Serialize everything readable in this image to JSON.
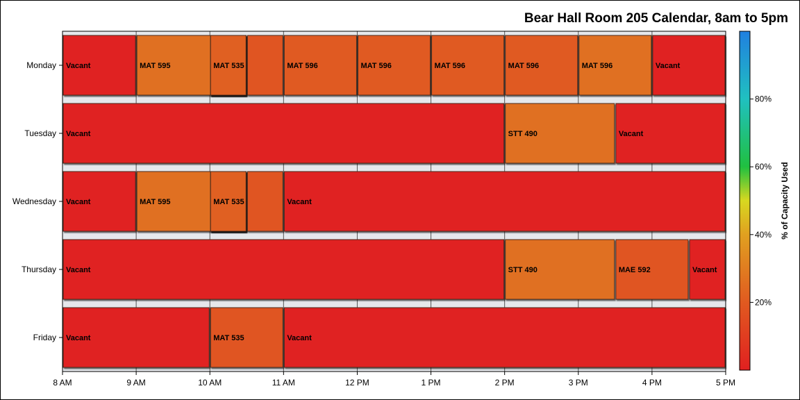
{
  "chart_data": {
    "type": "bar",
    "orientation": "horizontal",
    "title": "Bear Hall Room 205 Calendar, 8am to 5pm",
    "xlabel": "",
    "ylabel": "",
    "x_range_hours": [
      8,
      17
    ],
    "x_ticks": [
      {
        "hour": 8,
        "label": "8 AM"
      },
      {
        "hour": 9,
        "label": "9 AM"
      },
      {
        "hour": 10,
        "label": "10 AM"
      },
      {
        "hour": 11,
        "label": "11 AM"
      },
      {
        "hour": 12,
        "label": "12 PM"
      },
      {
        "hour": 13,
        "label": "1 PM"
      },
      {
        "hour": 14,
        "label": "2 PM"
      },
      {
        "hour": 15,
        "label": "3 PM"
      },
      {
        "hour": 16,
        "label": "4 PM"
      },
      {
        "hour": 17,
        "label": "5 PM"
      }
    ],
    "categories": [
      "Monday",
      "Tuesday",
      "Wednesday",
      "Thursday",
      "Friday"
    ],
    "colorbar": {
      "label": "% of Capacity Used",
      "range": [
        0,
        100
      ],
      "ticks": [
        {
          "value": 20,
          "label": "20%"
        },
        {
          "value": 40,
          "label": "40%"
        },
        {
          "value": 60,
          "label": "60%"
        },
        {
          "value": 80,
          "label": "80%"
        }
      ],
      "stops": [
        {
          "value": 0,
          "color": "#e02020"
        },
        {
          "value": 20,
          "color": "#e05a20"
        },
        {
          "value": 40,
          "color": "#e0a020"
        },
        {
          "value": 50,
          "color": "#d8d820"
        },
        {
          "value": 60,
          "color": "#20c040"
        },
        {
          "value": 80,
          "color": "#20c0c0"
        },
        {
          "value": 100,
          "color": "#2080e0"
        }
      ]
    },
    "blocks": [
      {
        "day": "Monday",
        "start": 8,
        "end": 9,
        "label": "Vacant",
        "capacity": 0
      },
      {
        "day": "Monday",
        "start": 9,
        "end": 10.5,
        "label": "MAT 595",
        "capacity": 26
      },
      {
        "day": "Monday",
        "start": 10,
        "end": 10.5,
        "label": "MAT 595",
        "capacity": 26
      },
      {
        "day": "Monday",
        "start": 10,
        "end": 10.5,
        "label": "MAT 535",
        "capacity": 22
      },
      {
        "day": "Monday",
        "start": 10,
        "end": 10.5,
        "label": "MAT 535",
        "capacity": 22
      },
      {
        "day": "Monday",
        "start": 10.5,
        "end": 11,
        "label": "",
        "capacity": 18
      },
      {
        "day": "Monday",
        "start": 11,
        "end": 12,
        "label": "MAT 596",
        "capacity": 20
      },
      {
        "day": "Monday",
        "start": 12,
        "end": 13,
        "label": "MAT 596",
        "capacity": 20
      },
      {
        "day": "Monday",
        "start": 13,
        "end": 14,
        "label": "MAT 596",
        "capacity": 20
      },
      {
        "day": "Monday",
        "start": 14,
        "end": 15,
        "label": "MAT 596",
        "capacity": 20
      },
      {
        "day": "Monday",
        "start": 15,
        "end": 16,
        "label": "MAT 596",
        "capacity": 26
      },
      {
        "day": "Monday",
        "start": 16,
        "end": 17,
        "label": "Vacant",
        "capacity": 0
      },
      {
        "day": "Tuesday",
        "start": 8,
        "end": 14,
        "label": "Vacant",
        "capacity": 0
      },
      {
        "day": "Tuesday",
        "start": 14,
        "end": 15.5,
        "label": "STT 490",
        "capacity": 26
      },
      {
        "day": "Tuesday",
        "start": 15.5,
        "end": 17,
        "label": "Vacant",
        "capacity": 0
      },
      {
        "day": "Wednesday",
        "start": 8,
        "end": 9,
        "label": "Vacant",
        "capacity": 0
      },
      {
        "day": "Wednesday",
        "start": 9,
        "end": 10.5,
        "label": "MAT 595",
        "capacity": 26
      },
      {
        "day": "Wednesday",
        "start": 10,
        "end": 10.5,
        "label": "MAT 595",
        "capacity": 26
      },
      {
        "day": "Wednesday",
        "start": 10,
        "end": 10.5,
        "label": "MAT 535",
        "capacity": 22
      },
      {
        "day": "Wednesday",
        "start": 10,
        "end": 10.5,
        "label": "MAT 535",
        "capacity": 22
      },
      {
        "day": "Wednesday",
        "start": 10.5,
        "end": 11,
        "label": "",
        "capacity": 18
      },
      {
        "day": "Wednesday",
        "start": 11,
        "end": 17,
        "label": "Vacant",
        "capacity": 0
      },
      {
        "day": "Thursday",
        "start": 8,
        "end": 14,
        "label": "Vacant",
        "capacity": 0
      },
      {
        "day": "Thursday",
        "start": 14,
        "end": 15.5,
        "label": "STT 490",
        "capacity": 26
      },
      {
        "day": "Thursday",
        "start": 15.5,
        "end": 16.5,
        "label": "MAE 592",
        "capacity": 18
      },
      {
        "day": "Thursday",
        "start": 16.5,
        "end": 17,
        "label": "Vacant",
        "capacity": 0
      },
      {
        "day": "Friday",
        "start": 8,
        "end": 10,
        "label": "Vacant",
        "capacity": 0
      },
      {
        "day": "Friday",
        "start": 10,
        "end": 11,
        "label": "MAT 535",
        "capacity": 18
      },
      {
        "day": "Friday",
        "start": 11,
        "end": 17,
        "label": "Vacant",
        "capacity": 0
      }
    ]
  }
}
